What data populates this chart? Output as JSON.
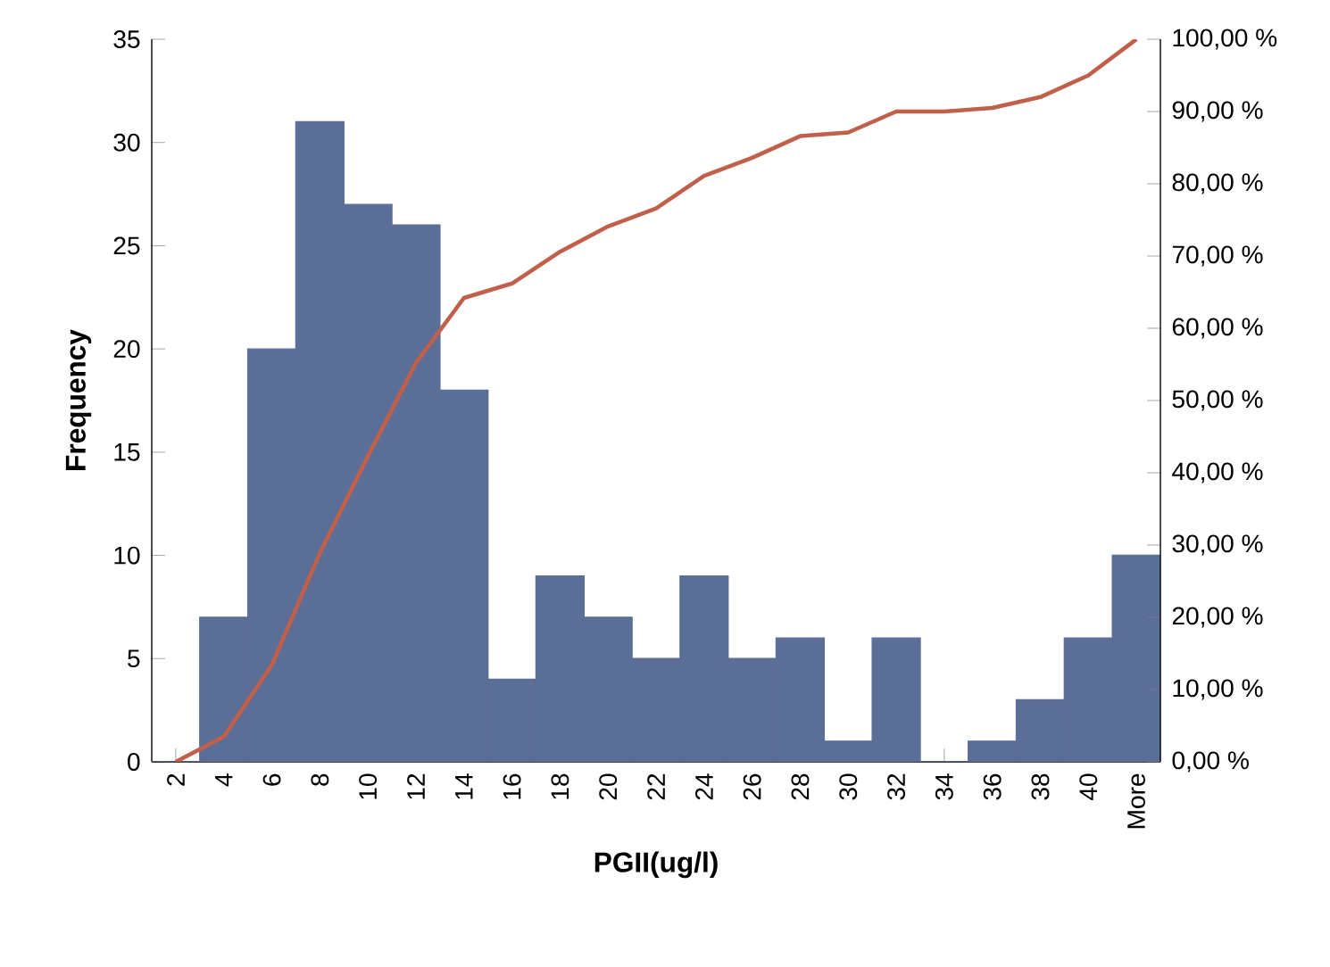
{
  "chart_data": {
    "type": "bar",
    "xlabel": "PGII(ug/l)",
    "ylabel": "Frequency",
    "categories": [
      "2",
      "4",
      "6",
      "8",
      "10",
      "12",
      "14",
      "16",
      "18",
      "20",
      "22",
      "24",
      "26",
      "28",
      "30",
      "32",
      "34",
      "36",
      "38",
      "40",
      "More"
    ],
    "ylim": [
      0,
      35
    ],
    "yticks": [
      0,
      5,
      10,
      15,
      20,
      25,
      30,
      35
    ],
    "y2lim": [
      0,
      100
    ],
    "y2ticks": [
      {
        "value": 0,
        "label": "0,00 %"
      },
      {
        "value": 10,
        "label": "10,00 %"
      },
      {
        "value": 20,
        "label": "20,00 %"
      },
      {
        "value": 30,
        "label": "30,00 %"
      },
      {
        "value": 40,
        "label": "40,00 %"
      },
      {
        "value": 50,
        "label": "50,00 %"
      },
      {
        "value": 60,
        "label": "60,00 %"
      },
      {
        "value": 70,
        "label": "70,00 %"
      },
      {
        "value": 80,
        "label": "80,00 %"
      },
      {
        "value": 90,
        "label": "90,00 %"
      },
      {
        "value": 100,
        "label": "100,00 %"
      }
    ],
    "series": [
      {
        "color": "#5b6e97",
        "values": [
          0,
          7,
          20,
          31,
          27,
          26,
          18,
          4,
          9,
          7,
          5,
          9,
          5,
          6,
          1,
          6,
          0,
          1,
          3,
          6,
          10
        ]
      },
      {
        "type": "line",
        "axis": "y2",
        "color": "#c0604a",
        "values": [
          0,
          3.5,
          13.4,
          28.9,
          42.3,
          55.2,
          64.2,
          66.2,
          70.6,
          74.1,
          76.6,
          81.1,
          83.6,
          86.6,
          87.1,
          90.0,
          90.0,
          90.5,
          92.0,
          95.0,
          100
        ]
      }
    ]
  }
}
